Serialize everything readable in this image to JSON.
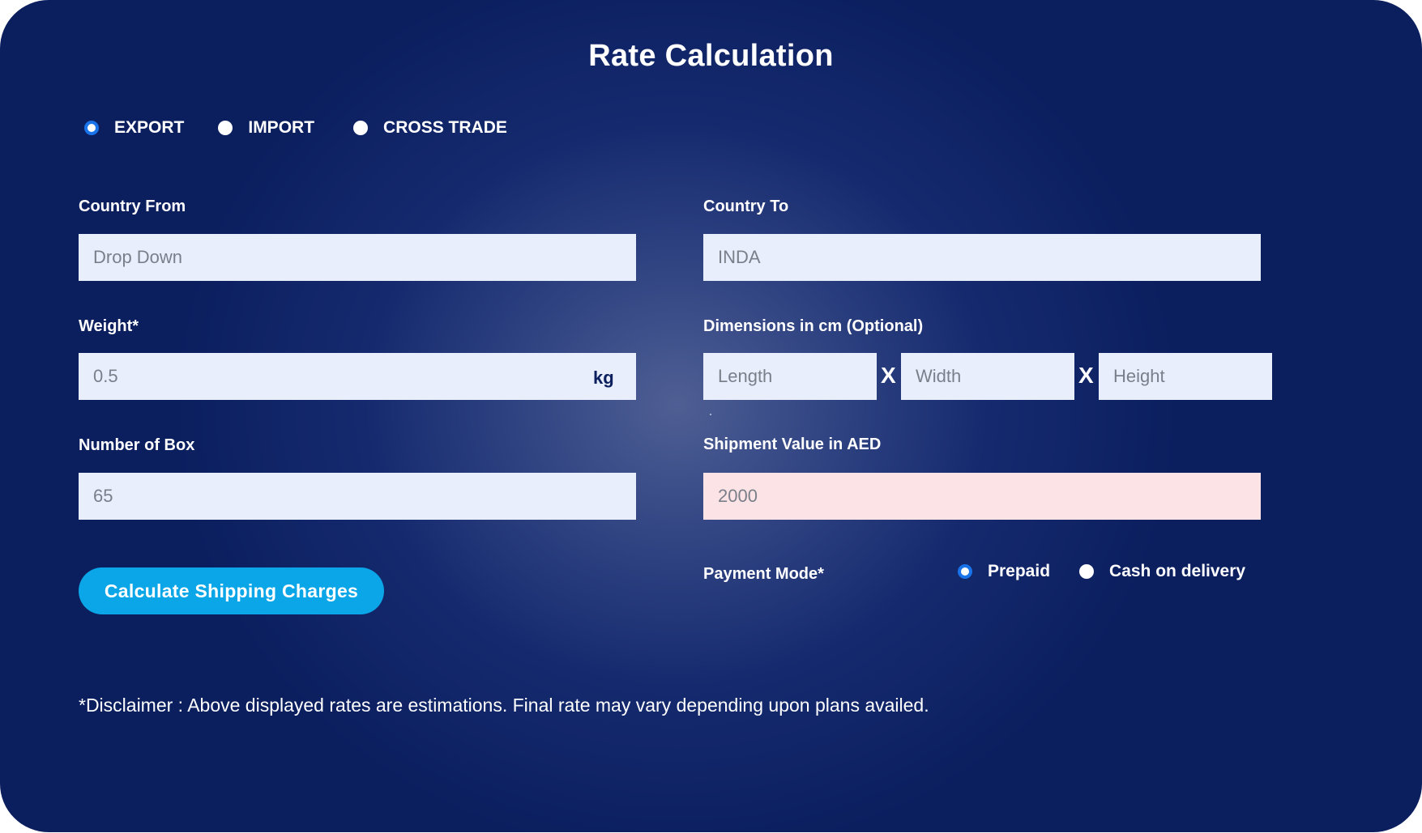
{
  "title": "Rate Calculation",
  "trade_type": {
    "options": [
      {
        "label": "EXPORT",
        "checked": true
      },
      {
        "label": "IMPORT",
        "checked": false
      },
      {
        "label": "CROSS TRADE",
        "checked": false
      }
    ]
  },
  "country_from": {
    "label": "Country From",
    "placeholder": "Drop Down"
  },
  "country_to": {
    "label": "Country To",
    "value": "INDA"
  },
  "weight": {
    "label": "Weight*",
    "placeholder": "0.5",
    "unit": "kg"
  },
  "dimensions": {
    "label": "Dimensions in cm (Optional)",
    "length_placeholder": "Length",
    "width_placeholder": "Width",
    "height_placeholder": "Height",
    "separator": "X"
  },
  "number_of_box": {
    "label": "Number of Box",
    "value": "65"
  },
  "shipment_value": {
    "label": "Shipment Value in AED",
    "value": "2000"
  },
  "calculate_button": {
    "label": "Calculate Shipping Charges"
  },
  "payment_mode": {
    "label": "Payment Mode*",
    "options": [
      {
        "label": "Prepaid",
        "checked": true
      },
      {
        "label": "Cash on delivery",
        "checked": false
      }
    ]
  },
  "disclaimer": "*Disclaimer : Above displayed rates are estimations. Final rate may vary depending upon plans availed.",
  "colors": {
    "background_dark": "#0b1f5f",
    "background_glow": "#4f5f94",
    "input_bg": "#e8eefc",
    "input_highlight_bg": "#fce4e6",
    "button_bg": "#0aa6e8",
    "radio_checked": "#1a73e8"
  }
}
